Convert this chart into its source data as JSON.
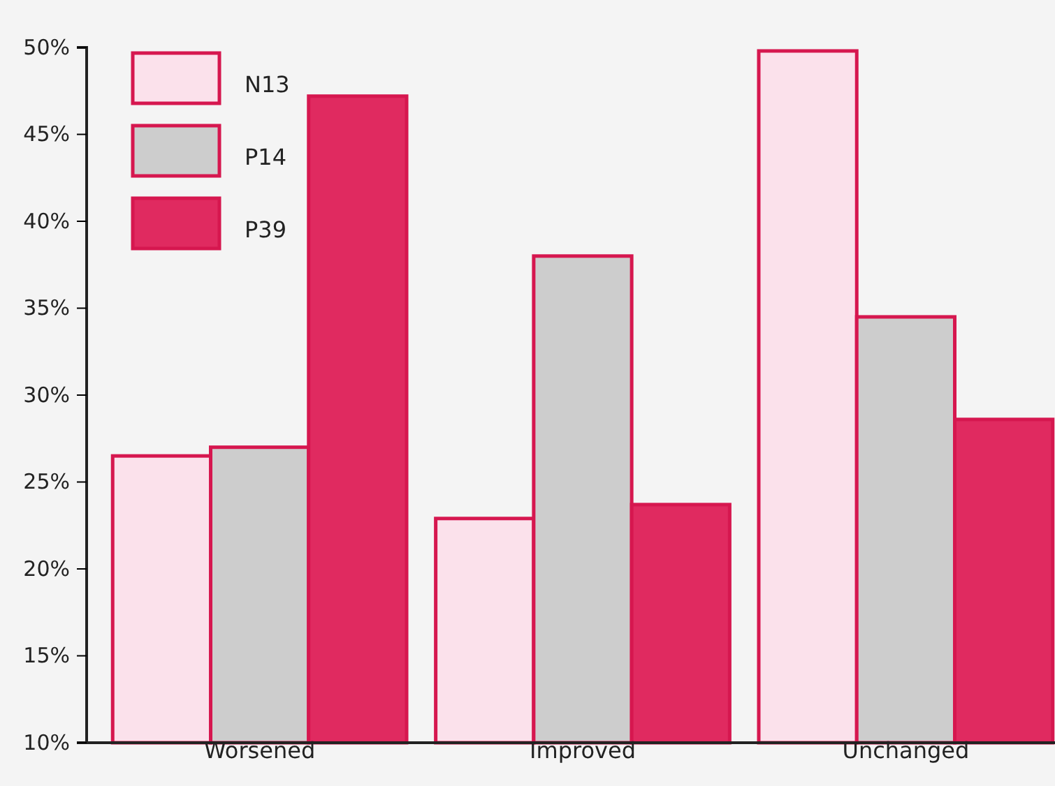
{
  "chart_data": {
    "type": "bar",
    "categories": [
      "Worsened",
      "Improved",
      "Unchanged"
    ],
    "series": [
      {
        "name": "N13",
        "color": "#fbe1eb",
        "values": [
          26.5,
          22.9,
          49.8
        ]
      },
      {
        "name": "P14",
        "color": "#cdcdcd",
        "values": [
          27.0,
          38.0,
          34.5
        ]
      },
      {
        "name": "P39",
        "color": "#e02a60",
        "values": [
          47.2,
          23.7,
          28.6
        ]
      }
    ],
    "ylim": [
      10,
      50
    ],
    "yticks": [
      {
        "value": 10,
        "label": "10%"
      },
      {
        "value": 15,
        "label": "15%"
      },
      {
        "value": 20,
        "label": "20%"
      },
      {
        "value": 25,
        "label": "25%"
      },
      {
        "value": 30,
        "label": "30%"
      },
      {
        "value": 35,
        "label": "35%"
      },
      {
        "value": 40,
        "label": "40%"
      },
      {
        "value": 45,
        "label": "45%"
      },
      {
        "value": 50,
        "label": "50%"
      }
    ],
    "grid": false,
    "legend": "top left"
  }
}
